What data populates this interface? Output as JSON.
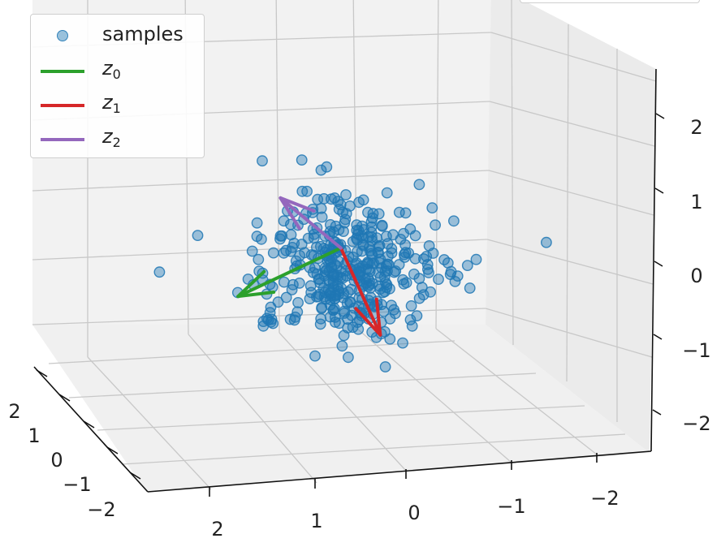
{
  "chart_data": {
    "type": "scatter3d",
    "legend": {
      "placement": "upper-left",
      "items": [
        {
          "name": "samples",
          "marker": "circle",
          "color": "#1f77b4"
        },
        {
          "name": "z",
          "sub": "0",
          "marker": "line",
          "color": "#2ca02c"
        },
        {
          "name": "z",
          "sub": "1",
          "marker": "line",
          "color": "#d62728"
        },
        {
          "name": "z",
          "sub": "2",
          "marker": "line",
          "color": "#9467bd"
        }
      ]
    },
    "axes": {
      "x": {
        "ticks": [
          "2",
          "1",
          "0",
          "−1",
          "−2"
        ],
        "range": [
          -2.5,
          2.5
        ]
      },
      "y": {
        "ticks": [
          "2",
          "1",
          "0",
          "−1",
          "−2"
        ],
        "range": [
          -2.5,
          2.5
        ]
      },
      "z": {
        "ticks": [
          "2",
          "1",
          "0",
          "−1",
          "−2"
        ],
        "range": [
          -2.5,
          2.5
        ]
      }
    },
    "grid": true,
    "vectors": [
      {
        "name": "z0",
        "color": "#2ca02c",
        "from": [
          0.15,
          0.05,
          0.3
        ],
        "to": [
          2.1,
          0.5,
          -0.2
        ]
      },
      {
        "name": "z1",
        "color": "#d62728",
        "from": [
          0.15,
          0.05,
          0.3
        ],
        "to": [
          -0.3,
          -0.7,
          -0.9
        ]
      },
      {
        "name": "z2",
        "color": "#9467bd",
        "from": [
          0.15,
          0.05,
          0.3
        ],
        "to": [
          1.2,
          0.5,
          1.1
        ]
      }
    ],
    "sample_count": 400
  }
}
